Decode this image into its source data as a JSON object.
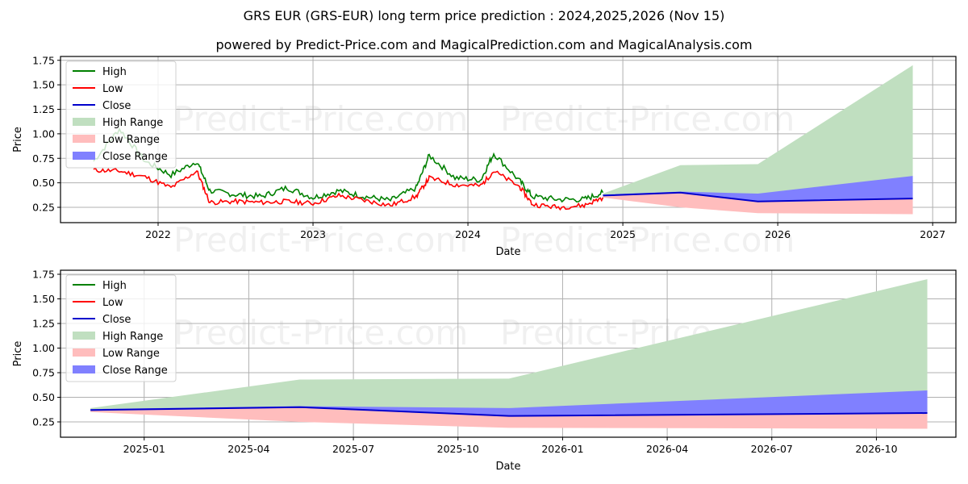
{
  "header": {
    "title": "GRS EUR (GRS-EUR) long term price prediction : 2024,2025,2026 (Nov 15)",
    "subtitle": "powered by Predict-Price.com and MagicalPrediction.com and MagicalAnalysis.com"
  },
  "watermark": "Predict-Price.com",
  "legend": {
    "items": [
      {
        "label": "High",
        "kind": "line",
        "color": "#008000"
      },
      {
        "label": "Low",
        "kind": "line",
        "color": "#ff0000"
      },
      {
        "label": "Close",
        "kind": "line",
        "color": "#0000cc"
      },
      {
        "label": "High Range",
        "kind": "patch",
        "color": "#c0dfc0"
      },
      {
        "label": "Low Range",
        "kind": "patch",
        "color": "#ffbdbd"
      },
      {
        "label": "Close Range",
        "kind": "patch",
        "color": "#8080ff"
      }
    ]
  },
  "colors": {
    "high": "#008000",
    "low": "#ff0000",
    "close": "#0000cc",
    "high_range": "#c0dfc0",
    "low_range": "#ffbdbd",
    "close_range": "#8080ff",
    "grid": "#b0b0b0"
  },
  "top_chart": {
    "xlabel": "Date",
    "ylabel": "Price",
    "xticks": [
      "2022",
      "2023",
      "2024",
      "2025",
      "2026",
      "2027"
    ],
    "yticks": [
      "0.25",
      "0.50",
      "0.75",
      "1.00",
      "1.25",
      "1.50",
      "1.75"
    ]
  },
  "bottom_chart": {
    "xlabel": "Date",
    "ylabel": "Price",
    "xticks": [
      "2025-01",
      "2025-04",
      "2025-07",
      "2025-10",
      "2026-01",
      "2026-04",
      "2026-07",
      "2026-10"
    ],
    "yticks": [
      "0.25",
      "0.50",
      "0.75",
      "1.00",
      "1.25",
      "1.50",
      "1.75"
    ]
  },
  "chart_data": [
    {
      "type": "line",
      "title": "GRS EUR (GRS-EUR) long term price prediction : 2024,2025,2026 (Nov 15)",
      "subtitle": "powered by Predict-Price.com and MagicalPrediction.com and MagicalAnalysis.com",
      "xlabel": "Date",
      "ylabel": "Price",
      "ylim": [
        0.1,
        1.77
      ],
      "xlim": [
        "2021-05",
        "2027-02"
      ],
      "grid": true,
      "legend_position": "upper left",
      "x": [
        "2021-08",
        "2021-10",
        "2021-12",
        "2022-02",
        "2022-04",
        "2022-05",
        "2022-07",
        "2022-09",
        "2022-11",
        "2023-01",
        "2023-03",
        "2023-05",
        "2023-07",
        "2023-09",
        "2023-10",
        "2023-12",
        "2024-02",
        "2024-03",
        "2024-05",
        "2024-06",
        "2024-08",
        "2024-10",
        "2024-11-15"
      ],
      "series": [
        {
          "name": "High",
          "values": [
            0.72,
            1.05,
            0.72,
            0.58,
            0.72,
            0.42,
            0.38,
            0.36,
            0.45,
            0.35,
            0.42,
            0.36,
            0.32,
            0.45,
            0.78,
            0.55,
            0.53,
            0.8,
            0.52,
            0.36,
            0.33,
            0.33,
            0.4
          ]
        },
        {
          "name": "Low",
          "values": [
            0.63,
            0.62,
            0.56,
            0.45,
            0.62,
            0.3,
            0.31,
            0.3,
            0.31,
            0.29,
            0.37,
            0.32,
            0.27,
            0.36,
            0.55,
            0.48,
            0.47,
            0.62,
            0.46,
            0.28,
            0.25,
            0.27,
            0.35
          ]
        },
        {
          "name": "Close",
          "x": [
            "2024-11-15",
            "2025-05-15",
            "2025-11-15",
            "2026-11-15"
          ],
          "values": [
            0.37,
            0.4,
            0.31,
            0.34
          ]
        },
        {
          "name": "High Range",
          "x": [
            "2024-11-15",
            "2025-05-15",
            "2025-11-15",
            "2026-11-15"
          ],
          "values": [
            0.39,
            0.68,
            0.69,
            1.7
          ]
        },
        {
          "name": "Low Range",
          "x": [
            "2024-11-15",
            "2025-05-15",
            "2025-11-15",
            "2026-11-15"
          ],
          "values": [
            0.35,
            0.25,
            0.19,
            0.18
          ]
        },
        {
          "name": "Close Range",
          "x": [
            "2024-11-15",
            "2025-05-15",
            "2025-11-15",
            "2026-11-15"
          ],
          "lower": [
            0.37,
            0.4,
            0.31,
            0.34
          ],
          "upper": [
            0.38,
            0.41,
            0.39,
            0.57
          ]
        }
      ],
      "xticks": [
        "2022",
        "2023",
        "2024",
        "2025",
        "2026",
        "2027"
      ],
      "yticks": [
        0.25,
        0.5,
        0.75,
        1.0,
        1.25,
        1.5,
        1.75
      ]
    },
    {
      "type": "area",
      "xlabel": "Date",
      "ylabel": "Price",
      "ylim": [
        0.1,
        1.77
      ],
      "xlim": [
        "2024-10-20",
        "2026-12-10"
      ],
      "grid": true,
      "legend_position": "upper left",
      "x": [
        "2024-11-15",
        "2025-05-15",
        "2025-11-15",
        "2026-11-15"
      ],
      "series": [
        {
          "name": "Close",
          "values": [
            0.37,
            0.4,
            0.31,
            0.34
          ]
        },
        {
          "name": "High Range",
          "values": [
            0.39,
            0.68,
            0.69,
            1.7
          ]
        },
        {
          "name": "Low Range",
          "values": [
            0.35,
            0.25,
            0.19,
            0.18
          ]
        },
        {
          "name": "Close Range",
          "lower": [
            0.37,
            0.4,
            0.31,
            0.34
          ],
          "upper": [
            0.38,
            0.41,
            0.39,
            0.57
          ]
        }
      ],
      "xticks": [
        "2025-01",
        "2025-04",
        "2025-07",
        "2025-10",
        "2026-01",
        "2026-04",
        "2026-07",
        "2026-10"
      ],
      "yticks": [
        0.25,
        0.5,
        0.75,
        1.0,
        1.25,
        1.5,
        1.75
      ]
    }
  ]
}
